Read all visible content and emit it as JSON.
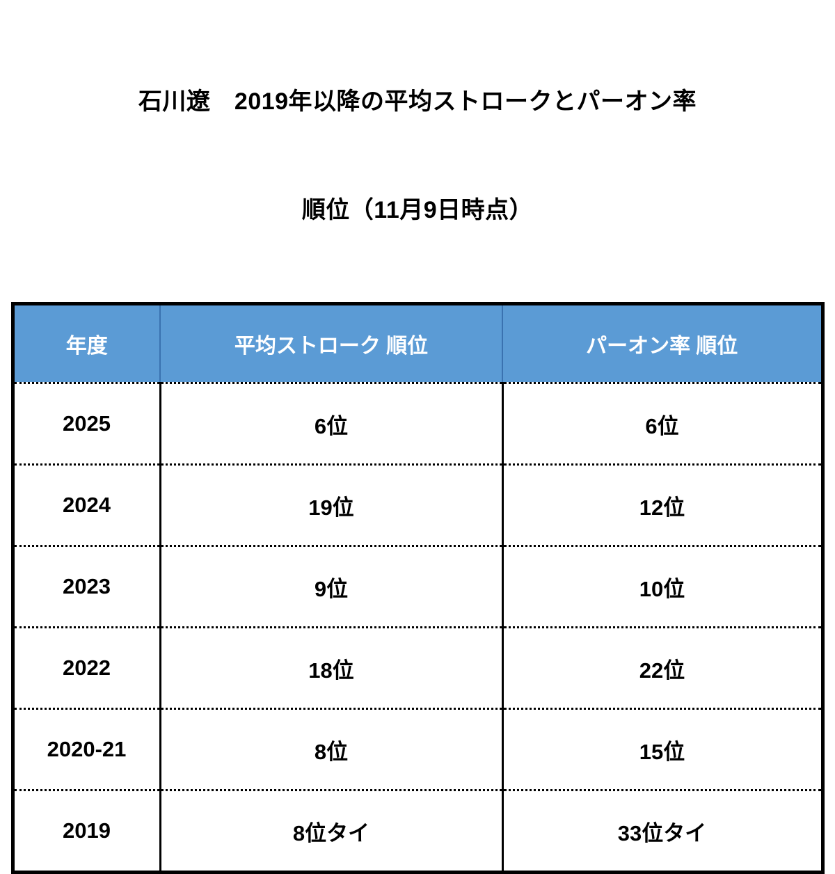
{
  "title": {
    "line1": "石川遼　2019年以降の平均ストロークとパーオン率",
    "line2": "順位（11月9日時点）"
  },
  "colors": {
    "header_bg": "#5b9bd5",
    "header_divider": "#3a72b0",
    "header_text": "#ffffff",
    "border": "#000000",
    "body_text": "#000000",
    "background": "#ffffff"
  },
  "table": {
    "columns": [
      "年度",
      "平均ストローク 順位",
      "パーオン率 順位"
    ],
    "rows": [
      [
        "2025",
        "6位",
        "6位"
      ],
      [
        "2024",
        "19位",
        "12位"
      ],
      [
        "2023",
        "9位",
        "10位"
      ],
      [
        "2022",
        "18位",
        "22位"
      ],
      [
        "2020-21",
        "8位",
        "15位"
      ],
      [
        "2019",
        "8位タイ",
        "33位タイ"
      ]
    ]
  },
  "chart_data": {
    "type": "table",
    "title": "石川遼　2019年以降の平均ストロークとパーオン率順位（11月9日時点）",
    "columns": [
      "年度",
      "平均ストローク 順位",
      "パーオン率 順位"
    ],
    "rows": [
      {
        "年度": "2025",
        "平均ストローク 順位": "6位",
        "パーオン率 順位": "6位"
      },
      {
        "年度": "2024",
        "平均ストローク 順位": "19位",
        "パーオン率 順位": "12位"
      },
      {
        "年度": "2023",
        "平均ストローク 順位": "9位",
        "パーオン率 順位": "10位"
      },
      {
        "年度": "2022",
        "平均ストローク 順位": "18位",
        "パーオン率 順位": "22位"
      },
      {
        "年度": "2020-21",
        "平均ストローク 順位": "8位",
        "パーオン率 順位": "15位"
      },
      {
        "年度": "2019",
        "平均ストローク 順位": "8位タイ",
        "パーオン率 順位": "33位タイ"
      }
    ],
    "layout": {
      "header_fill": "#5b9bd5",
      "header_text_color": "#ffffff",
      "row_separator": "dotted",
      "column_separator": "solid",
      "outer_border": "thick solid"
    }
  }
}
